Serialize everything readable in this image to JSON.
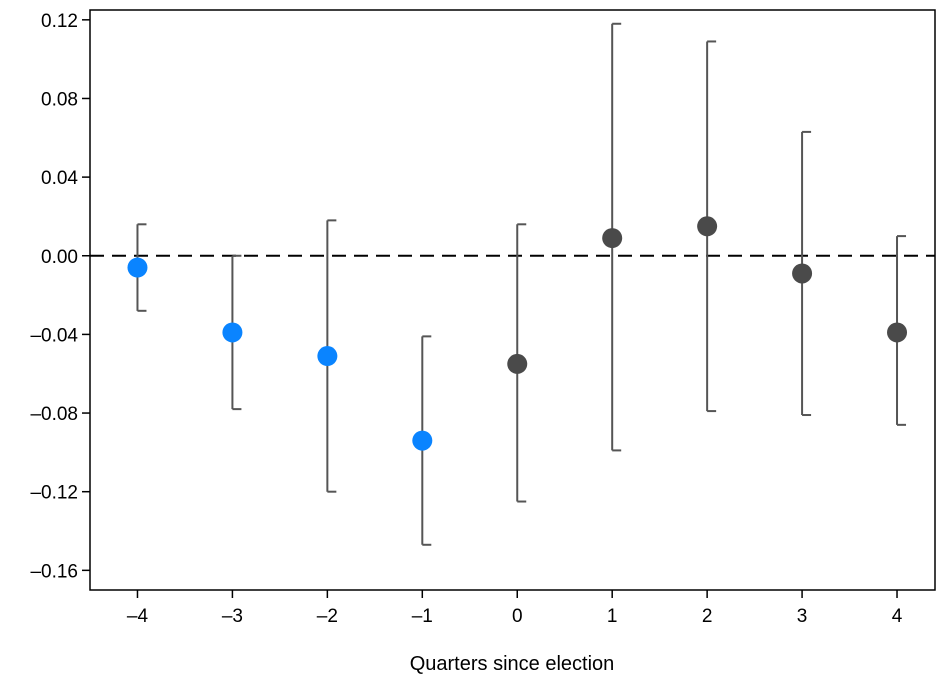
{
  "chart_data": {
    "type": "scatter",
    "title": "",
    "xlabel": "Quarters since election",
    "ylabel": "",
    "xlim": [
      -4.5,
      4.4
    ],
    "ylim": [
      -0.17,
      0.125
    ],
    "x_ticks": [
      -4,
      -3,
      -2,
      -1,
      0,
      1,
      2,
      3,
      4
    ],
    "x_tick_labels": [
      "–4",
      "–3",
      "–2",
      "–1",
      "0",
      "1",
      "2",
      "3",
      "4"
    ],
    "y_ticks": [
      0.12,
      0.08,
      0.04,
      0.0,
      -0.04,
      -0.08,
      -0.12,
      -0.16
    ],
    "y_tick_labels": [
      "0.12",
      "0.08",
      "0.04",
      "0.00",
      "–0.04",
      "–0.08",
      "–0.12",
      "–0.16"
    ],
    "reference_line": {
      "y": 0.0,
      "style": "dashed"
    },
    "grid": false,
    "legend": "none",
    "colors": {
      "pre_election": "#0a84ff",
      "post_election": "#4a4a4a",
      "error_bar": "#555555"
    },
    "points": [
      {
        "x": -4,
        "y": -0.006,
        "lower": -0.028,
        "upper": 0.016,
        "group": "pre_election"
      },
      {
        "x": -3,
        "y": -0.039,
        "lower": -0.078,
        "upper": 0.0,
        "group": "pre_election"
      },
      {
        "x": -2,
        "y": -0.051,
        "lower": -0.12,
        "upper": 0.018,
        "group": "pre_election"
      },
      {
        "x": -1,
        "y": -0.094,
        "lower": -0.147,
        "upper": -0.041,
        "group": "pre_election"
      },
      {
        "x": 0,
        "y": -0.055,
        "lower": -0.125,
        "upper": 0.016,
        "group": "post_election"
      },
      {
        "x": 1,
        "y": 0.009,
        "lower": -0.099,
        "upper": 0.118,
        "group": "post_election"
      },
      {
        "x": 2,
        "y": 0.015,
        "lower": -0.079,
        "upper": 0.109,
        "group": "post_election"
      },
      {
        "x": 3,
        "y": -0.009,
        "lower": -0.081,
        "upper": 0.063,
        "group": "post_election"
      },
      {
        "x": 4,
        "y": -0.039,
        "lower": -0.086,
        "upper": 0.01,
        "group": "post_election"
      }
    ]
  }
}
